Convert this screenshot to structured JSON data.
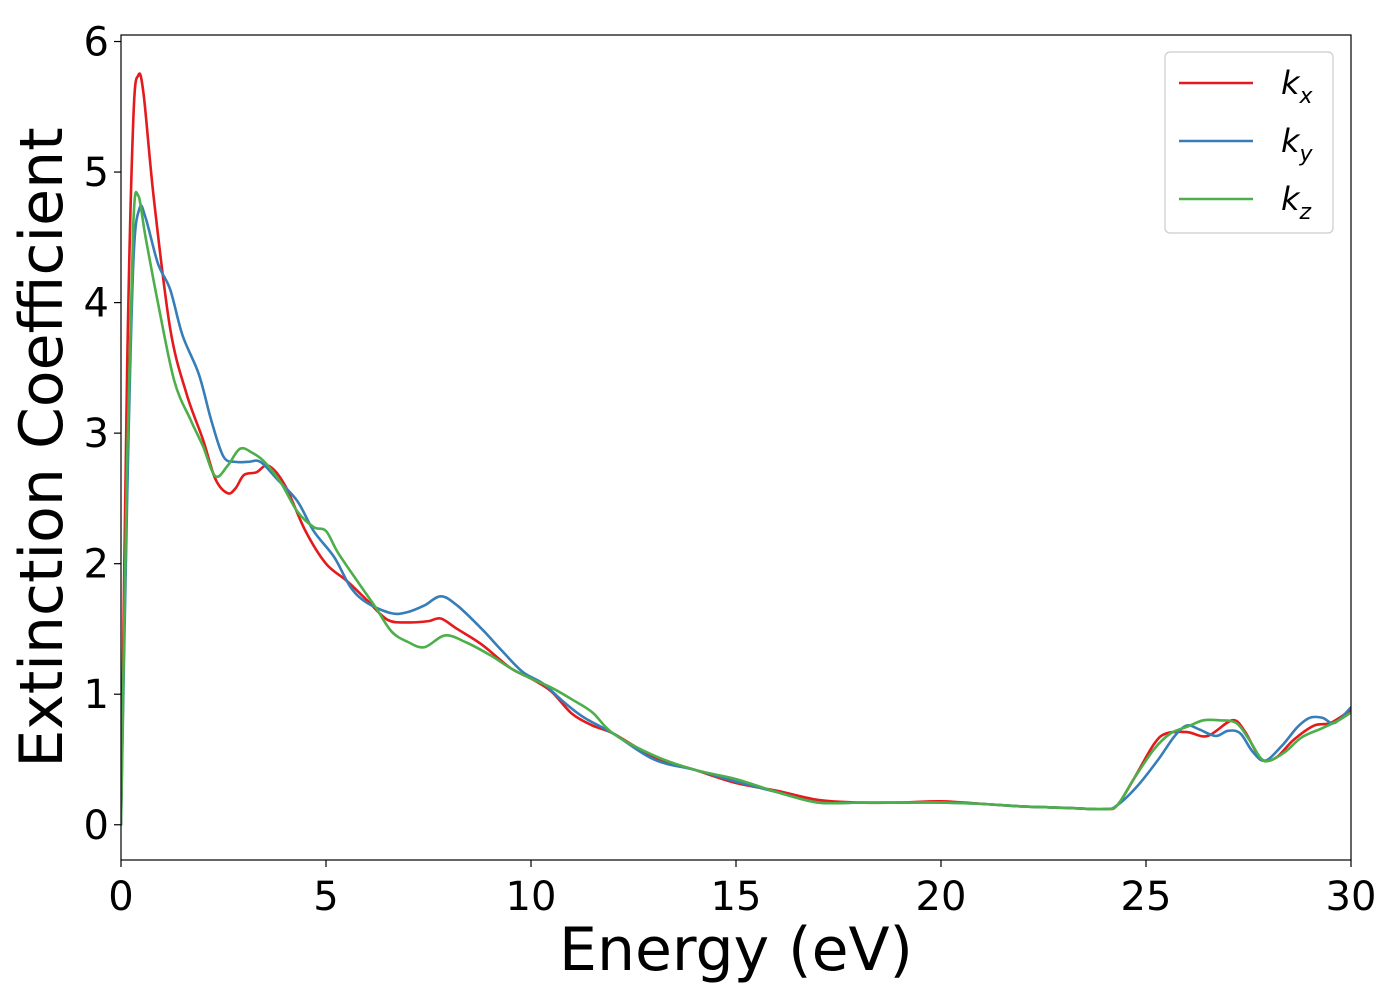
{
  "chart_data": {
    "type": "line",
    "xlabel": "Energy (eV)",
    "ylabel": "Extinction Coefficient",
    "xlim": [
      0,
      30
    ],
    "ylim": [
      -0.27,
      6.05
    ],
    "xticks": [
      0,
      5,
      10,
      15,
      20,
      25,
      30
    ],
    "yticks": [
      0,
      1,
      2,
      3,
      4,
      5,
      6
    ],
    "grid": false,
    "legend_position": "top-right",
    "series": [
      {
        "name": "k_x",
        "label_main": "k",
        "label_sub": "x",
        "color": "#e41a1c",
        "points": [
          [
            0,
            0
          ],
          [
            0.15,
            3.5
          ],
          [
            0.3,
            5.4
          ],
          [
            0.42,
            5.74
          ],
          [
            0.55,
            5.6
          ],
          [
            0.8,
            4.8
          ],
          [
            1.2,
            3.8
          ],
          [
            1.6,
            3.3
          ],
          [
            2.0,
            2.95
          ],
          [
            2.3,
            2.65
          ],
          [
            2.6,
            2.54
          ],
          [
            2.8,
            2.58
          ],
          [
            3.0,
            2.68
          ],
          [
            3.3,
            2.7
          ],
          [
            3.6,
            2.75
          ],
          [
            4.0,
            2.6
          ],
          [
            4.5,
            2.25
          ],
          [
            5.0,
            2.0
          ],
          [
            5.5,
            1.87
          ],
          [
            6.0,
            1.72
          ],
          [
            6.5,
            1.57
          ],
          [
            7.0,
            1.55
          ],
          [
            7.5,
            1.56
          ],
          [
            7.8,
            1.58
          ],
          [
            8.2,
            1.5
          ],
          [
            8.8,
            1.38
          ],
          [
            9.5,
            1.2
          ],
          [
            10.0,
            1.12
          ],
          [
            10.5,
            1.02
          ],
          [
            11.0,
            0.85
          ],
          [
            11.5,
            0.76
          ],
          [
            12.0,
            0.7
          ],
          [
            13.0,
            0.52
          ],
          [
            14.0,
            0.42
          ],
          [
            15.0,
            0.32
          ],
          [
            16.0,
            0.26
          ],
          [
            17.0,
            0.19
          ],
          [
            18.0,
            0.17
          ],
          [
            19.0,
            0.17
          ],
          [
            20.0,
            0.18
          ],
          [
            21.0,
            0.16
          ],
          [
            22.0,
            0.14
          ],
          [
            23.0,
            0.13
          ],
          [
            24.0,
            0.12
          ],
          [
            24.3,
            0.15
          ],
          [
            24.7,
            0.35
          ],
          [
            25.2,
            0.62
          ],
          [
            25.5,
            0.7
          ],
          [
            26.0,
            0.71
          ],
          [
            26.5,
            0.68
          ],
          [
            27.1,
            0.8
          ],
          [
            27.4,
            0.72
          ],
          [
            27.7,
            0.55
          ],
          [
            27.9,
            0.49
          ],
          [
            28.2,
            0.52
          ],
          [
            28.6,
            0.65
          ],
          [
            29.1,
            0.76
          ],
          [
            29.5,
            0.78
          ],
          [
            30.0,
            0.88
          ]
        ]
      },
      {
        "name": "k_y",
        "label_main": "k",
        "label_sub": "y",
        "color": "#377eb8",
        "points": [
          [
            0,
            0
          ],
          [
            0.15,
            2.5
          ],
          [
            0.3,
            4.3
          ],
          [
            0.45,
            4.72
          ],
          [
            0.6,
            4.65
          ],
          [
            0.9,
            4.3
          ],
          [
            1.2,
            4.1
          ],
          [
            1.5,
            3.75
          ],
          [
            1.9,
            3.45
          ],
          [
            2.2,
            3.1
          ],
          [
            2.5,
            2.82
          ],
          [
            2.8,
            2.78
          ],
          [
            3.1,
            2.78
          ],
          [
            3.4,
            2.78
          ],
          [
            3.8,
            2.65
          ],
          [
            4.3,
            2.48
          ],
          [
            4.7,
            2.25
          ],
          [
            5.2,
            2.05
          ],
          [
            5.6,
            1.82
          ],
          [
            6.0,
            1.7
          ],
          [
            6.6,
            1.62
          ],
          [
            7.0,
            1.63
          ],
          [
            7.4,
            1.68
          ],
          [
            7.8,
            1.75
          ],
          [
            8.2,
            1.68
          ],
          [
            8.8,
            1.5
          ],
          [
            9.3,
            1.33
          ],
          [
            9.8,
            1.17
          ],
          [
            10.3,
            1.08
          ],
          [
            10.8,
            0.94
          ],
          [
            11.3,
            0.82
          ],
          [
            12.0,
            0.7
          ],
          [
            13.0,
            0.5
          ],
          [
            14.0,
            0.42
          ],
          [
            15.0,
            0.33
          ],
          [
            16.0,
            0.25
          ],
          [
            17.0,
            0.17
          ],
          [
            18.0,
            0.17
          ],
          [
            19.0,
            0.17
          ],
          [
            20.0,
            0.17
          ],
          [
            21.0,
            0.16
          ],
          [
            22.0,
            0.14
          ],
          [
            23.0,
            0.13
          ],
          [
            24.0,
            0.12
          ],
          [
            24.3,
            0.15
          ],
          [
            24.8,
            0.3
          ],
          [
            25.3,
            0.5
          ],
          [
            25.7,
            0.68
          ],
          [
            26.0,
            0.76
          ],
          [
            26.3,
            0.73
          ],
          [
            26.7,
            0.68
          ],
          [
            27.0,
            0.72
          ],
          [
            27.3,
            0.7
          ],
          [
            27.6,
            0.56
          ],
          [
            27.9,
            0.49
          ],
          [
            28.3,
            0.6
          ],
          [
            28.7,
            0.75
          ],
          [
            29.0,
            0.82
          ],
          [
            29.3,
            0.82
          ],
          [
            29.6,
            0.78
          ],
          [
            30.0,
            0.9
          ]
        ]
      },
      {
        "name": "k_z",
        "label_main": "k",
        "label_sub": "z",
        "color": "#4daf4a",
        "points": [
          [
            0,
            0
          ],
          [
            0.15,
            2.8
          ],
          [
            0.3,
            4.6
          ],
          [
            0.42,
            4.82
          ],
          [
            0.6,
            4.5
          ],
          [
            0.9,
            4.0
          ],
          [
            1.3,
            3.4
          ],
          [
            1.7,
            3.1
          ],
          [
            2.0,
            2.9
          ],
          [
            2.3,
            2.67
          ],
          [
            2.6,
            2.75
          ],
          [
            2.9,
            2.88
          ],
          [
            3.2,
            2.85
          ],
          [
            3.5,
            2.78
          ],
          [
            3.9,
            2.62
          ],
          [
            4.3,
            2.4
          ],
          [
            4.7,
            2.28
          ],
          [
            5.0,
            2.25
          ],
          [
            5.3,
            2.08
          ],
          [
            5.8,
            1.85
          ],
          [
            6.2,
            1.67
          ],
          [
            6.6,
            1.48
          ],
          [
            7.0,
            1.4
          ],
          [
            7.4,
            1.36
          ],
          [
            7.9,
            1.45
          ],
          [
            8.4,
            1.4
          ],
          [
            9.0,
            1.3
          ],
          [
            9.5,
            1.2
          ],
          [
            10.0,
            1.12
          ],
          [
            10.5,
            1.05
          ],
          [
            11.0,
            0.96
          ],
          [
            11.5,
            0.86
          ],
          [
            12.0,
            0.7
          ],
          [
            13.0,
            0.53
          ],
          [
            14.0,
            0.42
          ],
          [
            15.0,
            0.35
          ],
          [
            16.0,
            0.25
          ],
          [
            17.0,
            0.17
          ],
          [
            18.0,
            0.17
          ],
          [
            19.0,
            0.17
          ],
          [
            20.0,
            0.17
          ],
          [
            21.0,
            0.16
          ],
          [
            22.0,
            0.14
          ],
          [
            23.0,
            0.13
          ],
          [
            24.0,
            0.12
          ],
          [
            24.3,
            0.15
          ],
          [
            24.7,
            0.35
          ],
          [
            25.2,
            0.58
          ],
          [
            25.6,
            0.7
          ],
          [
            26.0,
            0.75
          ],
          [
            26.4,
            0.8
          ],
          [
            26.8,
            0.8
          ],
          [
            27.2,
            0.78
          ],
          [
            27.5,
            0.66
          ],
          [
            27.8,
            0.51
          ],
          [
            28.0,
            0.49
          ],
          [
            28.4,
            0.56
          ],
          [
            28.8,
            0.67
          ],
          [
            29.3,
            0.74
          ],
          [
            29.7,
            0.8
          ],
          [
            30.0,
            0.86
          ]
        ]
      }
    ]
  }
}
